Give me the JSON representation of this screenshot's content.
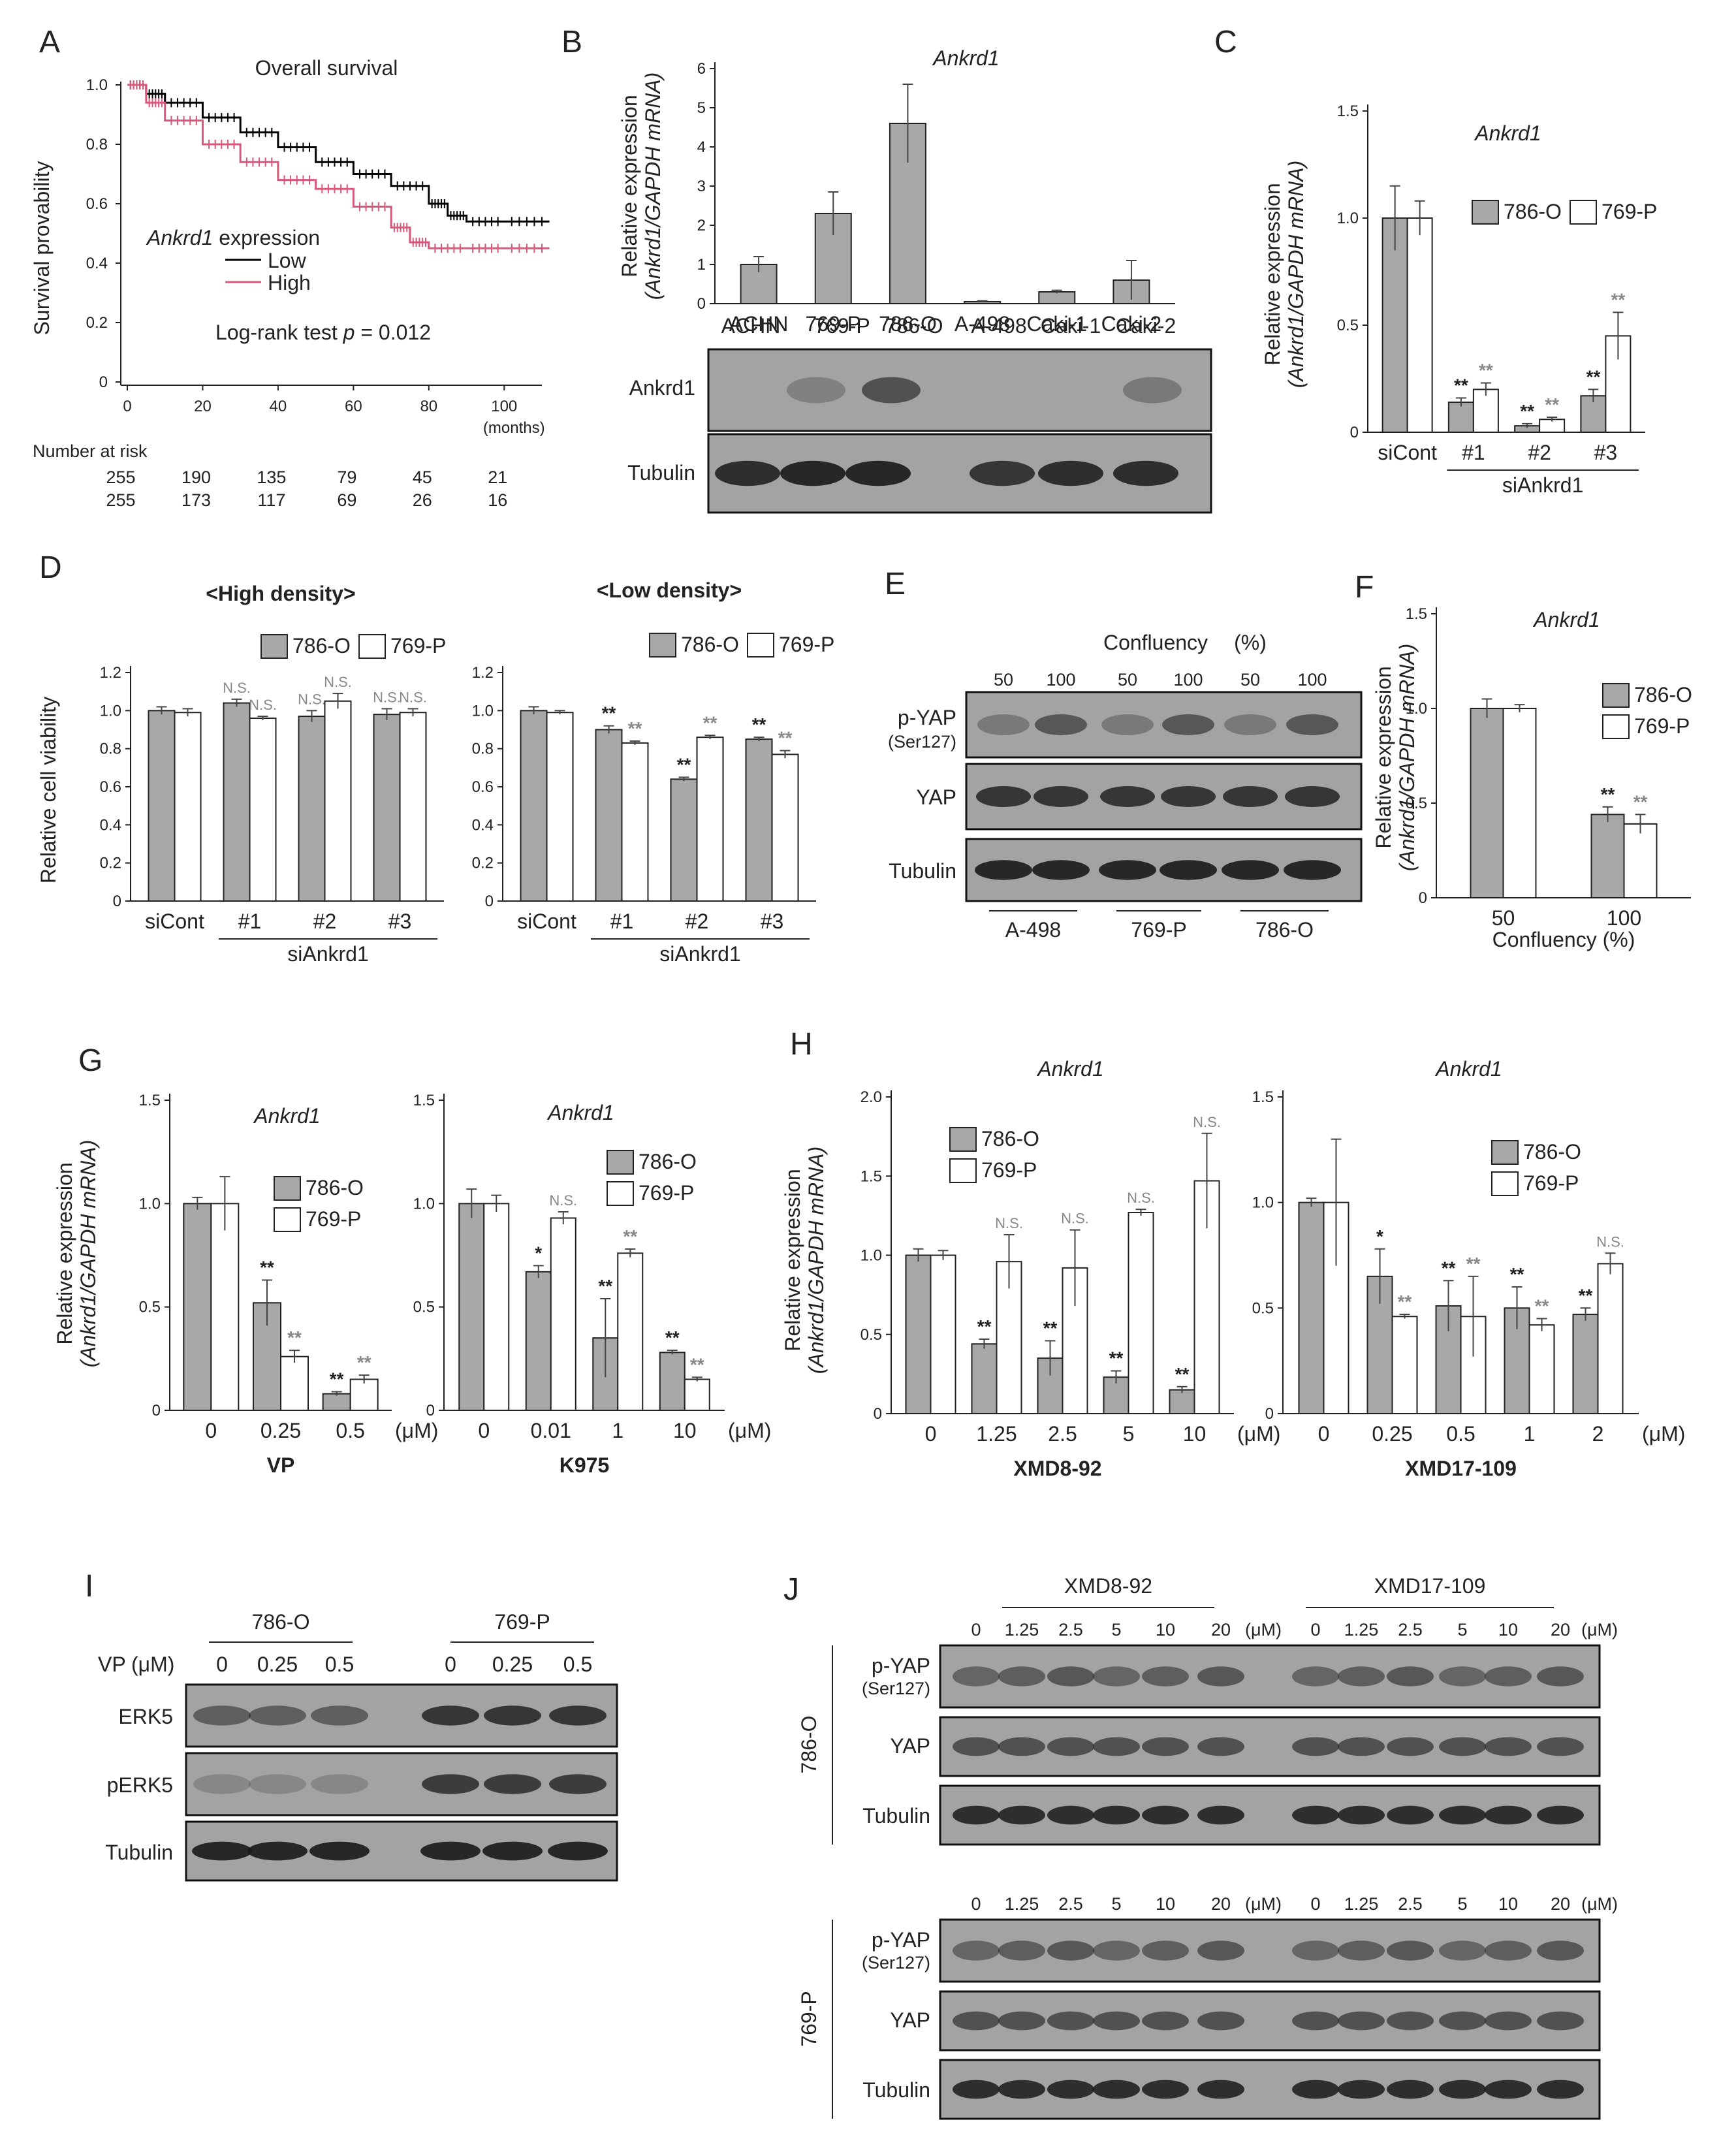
{
  "panels": [
    "A",
    "B",
    "C",
    "D",
    "E",
    "F",
    "G",
    "H",
    "I",
    "J"
  ],
  "chart_data": [
    {
      "panel": "A",
      "type": "line",
      "title": "Overall survival",
      "ylabel": "Survival provability",
      "xlabel": "(months)",
      "ylim": [
        0,
        1.0
      ],
      "xlim": [
        0,
        110
      ],
      "yticks": [
        "0",
        "0.2",
        "0.4",
        "0.6",
        "0.8",
        "1.0"
      ],
      "xticks": [
        "0",
        "20",
        "40",
        "60",
        "80",
        "100"
      ],
      "legend_title": "Ankrd1 expression",
      "legend_title_gene": "Ankrd1",
      "legend_title_rest": "expression",
      "series": [
        {
          "name": "Low",
          "color": "#000000",
          "x": [
            0,
            5,
            10,
            20,
            30,
            40,
            50,
            60,
            70,
            80,
            85,
            90,
            100,
            112
          ],
          "y": [
            1.0,
            0.97,
            0.94,
            0.89,
            0.84,
            0.79,
            0.74,
            0.7,
            0.66,
            0.6,
            0.56,
            0.54,
            0.54,
            0.54
          ]
        },
        {
          "name": "High",
          "color": "#d8587a",
          "x": [
            0,
            5,
            10,
            20,
            30,
            40,
            50,
            60,
            70,
            75,
            80,
            90,
            100,
            112
          ],
          "y": [
            1.0,
            0.94,
            0.88,
            0.8,
            0.74,
            0.68,
            0.65,
            0.59,
            0.52,
            0.47,
            0.45,
            0.45,
            0.45,
            0.45
          ]
        }
      ],
      "test_text": "Log-rank test",
      "p_text": "p",
      "p_value": "= 0.012",
      "risk_title": "Number at risk",
      "risk_rows": [
        [
          "255",
          "190",
          "135",
          "79",
          "45",
          "21"
        ],
        [
          "255",
          "173",
          "117",
          "69",
          "26",
          "16"
        ]
      ]
    },
    {
      "panel": "B",
      "type": "bar",
      "title": "Ankrd1",
      "ylabel_line1": "Relative expression",
      "ylabel_line2": "(Ankrd1/GAPDH mRNA)",
      "categories": [
        "ACHN",
        "769-P",
        "786-O",
        "A-498",
        "Caki-1",
        "Caki-2"
      ],
      "values": [
        1.0,
        2.3,
        4.6,
        0.05,
        0.3,
        0.6
      ],
      "errors": [
        0.2,
        0.55,
        1.0,
        0.02,
        0.04,
        0.5
      ],
      "ylim": [
        0,
        6
      ],
      "yticks": [
        "0",
        "1",
        "2",
        "3",
        "4",
        "5",
        "6"
      ],
      "blots": [
        "Ankrd1",
        "Tubulin"
      ]
    },
    {
      "panel": "C",
      "type": "bar",
      "title": "Ankrd1",
      "ylabel_line1": "Relative expression",
      "ylabel_line2": "(Ankrd1/GAPDH mRNA)",
      "categories": [
        "siCont",
        "#1",
        "#2",
        "#3"
      ],
      "group_label": "siAnkrd1",
      "ylim": [
        0,
        1.5
      ],
      "yticks": [
        "0",
        "0.5",
        "1.0",
        "1.5"
      ],
      "series": [
        {
          "name": "786-O",
          "values": [
            1.0,
            0.14,
            0.03,
            0.17
          ],
          "errors": [
            0.15,
            0.02,
            0.01,
            0.03
          ]
        },
        {
          "name": "769-P",
          "values": [
            1.0,
            0.2,
            0.06,
            0.45
          ],
          "errors": [
            0.08,
            0.03,
            0.01,
            0.11
          ]
        }
      ],
      "sig": [
        [
          "",
          "**",
          "**",
          "**"
        ],
        [
          "",
          "**",
          "**",
          "**"
        ]
      ]
    },
    {
      "panel": "D1",
      "type": "bar",
      "title": "<High density>",
      "ylabel": "Relative cell viability",
      "categories": [
        "siCont",
        "#1",
        "#2",
        "#3"
      ],
      "group_label": "siAnkrd1",
      "ylim": [
        0,
        1.2
      ],
      "yticks": [
        "0",
        "0.2",
        "0.4",
        "0.6",
        "0.8",
        "1.0",
        "1.2"
      ],
      "series": [
        {
          "name": "786-O",
          "values": [
            1.0,
            1.04,
            0.97,
            0.98
          ],
          "errors": [
            0.02,
            0.02,
            0.03,
            0.03
          ]
        },
        {
          "name": "769-P",
          "values": [
            0.99,
            0.96,
            1.05,
            0.99
          ],
          "errors": [
            0.02,
            0.01,
            0.04,
            0.02
          ]
        }
      ],
      "sig": [
        [
          "",
          "N.S.",
          "N.S.",
          "N.S."
        ],
        [
          "",
          "N.S.",
          "N.S.",
          "N.S."
        ]
      ]
    },
    {
      "panel": "D2",
      "type": "bar",
      "title": "<Low density>",
      "categories": [
        "siCont",
        "#1",
        "#2",
        "#3"
      ],
      "group_label": "siAnkrd1",
      "ylim": [
        0,
        1.2
      ],
      "yticks": [
        "0",
        "0.2",
        "0.4",
        "0.6",
        "0.8",
        "1.0",
        "1.2"
      ],
      "series": [
        {
          "name": "786-O",
          "values": [
            1.0,
            0.9,
            0.64,
            0.85
          ],
          "errors": [
            0.02,
            0.02,
            0.01,
            0.01
          ]
        },
        {
          "name": "769-P",
          "values": [
            0.99,
            0.83,
            0.86,
            0.77
          ],
          "errors": [
            0.01,
            0.01,
            0.01,
            0.02
          ]
        }
      ],
      "sig": [
        [
          "",
          "**",
          "**",
          "**"
        ],
        [
          "",
          "**",
          "**",
          "**"
        ]
      ]
    },
    {
      "panel": "F",
      "type": "bar",
      "title": "Ankrd1",
      "ylabel_line1": "Relative expression",
      "ylabel_line2": "(Ankrd1/GAPDH mRNA)",
      "categories": [
        "50",
        "100"
      ],
      "xlabel": "Confluency (%)",
      "ylim": [
        0,
        1.5
      ],
      "yticks": [
        "0",
        "0.5",
        "1.0",
        "1.5"
      ],
      "series": [
        {
          "name": "786-O",
          "values": [
            1.0,
            0.44
          ],
          "errors": [
            0.05,
            0.04
          ]
        },
        {
          "name": "769-P",
          "values": [
            1.0,
            0.39
          ],
          "errors": [
            0.02,
            0.05
          ]
        }
      ],
      "sig": [
        [
          "",
          "**"
        ],
        [
          "",
          "**"
        ]
      ]
    },
    {
      "panel": "G1",
      "type": "bar",
      "title": "Ankrd1",
      "xlabel": "VP",
      "ylabel_line1": "Relative expression",
      "ylabel_line2": "(Ankrd1/GAPDH mRNA)",
      "categories": [
        "0",
        "0.25",
        "0.5"
      ],
      "unit": "(μM)",
      "ylim": [
        0,
        1.5
      ],
      "yticks": [
        "0",
        "0.5",
        "1.0",
        "1.5"
      ],
      "series": [
        {
          "name": "786-O",
          "values": [
            1.0,
            0.52,
            0.08
          ],
          "errors": [
            0.03,
            0.11,
            0.01
          ]
        },
        {
          "name": "769-P",
          "values": [
            1.0,
            0.26,
            0.15
          ],
          "errors": [
            0.13,
            0.03,
            0.02
          ]
        }
      ],
      "sig": [
        [
          "",
          "**",
          "**"
        ],
        [
          "",
          "**",
          "**"
        ]
      ]
    },
    {
      "panel": "G2",
      "type": "bar",
      "title": "Ankrd1",
      "xlabel": "K975",
      "categories": [
        "0",
        "0.01",
        "1",
        "10"
      ],
      "unit": "(μM)",
      "ylim": [
        0,
        1.5
      ],
      "yticks": [
        "0",
        "0.5",
        "1.0",
        "1.5"
      ],
      "series": [
        {
          "name": "786-O",
          "values": [
            1.0,
            0.67,
            0.35,
            0.28
          ],
          "errors": [
            0.07,
            0.03,
            0.19,
            0.01
          ]
        },
        {
          "name": "769-P",
          "values": [
            1.0,
            0.93,
            0.76,
            0.15
          ],
          "errors": [
            0.04,
            0.03,
            0.02,
            0.01
          ]
        }
      ],
      "sig": [
        [
          "",
          "*",
          "**",
          "**"
        ],
        [
          "",
          "N.S.",
          "**",
          "**"
        ]
      ]
    },
    {
      "panel": "H1",
      "type": "bar",
      "title": "Ankrd1",
      "xlabel": "XMD8-92",
      "ylabel_line1": "Relative expression",
      "ylabel_line2": "(Ankrd1/GAPDH mRNA)",
      "categories": [
        "0",
        "1.25",
        "2.5",
        "5",
        "10"
      ],
      "unit": "(μM)",
      "ylim": [
        0,
        2.0
      ],
      "yticks": [
        "0",
        "0.5",
        "1.0",
        "1.5",
        "2.0"
      ],
      "series": [
        {
          "name": "786-O",
          "values": [
            1.0,
            0.44,
            0.35,
            0.23,
            0.15
          ],
          "errors": [
            0.04,
            0.03,
            0.11,
            0.04,
            0.02
          ]
        },
        {
          "name": "769-P",
          "values": [
            1.0,
            0.96,
            0.92,
            1.27,
            1.47
          ],
          "errors": [
            0.03,
            0.17,
            0.24,
            0.02,
            0.3
          ]
        }
      ],
      "sig": [
        [
          "",
          "**",
          "**",
          "**",
          "**"
        ],
        [
          "",
          "N.S.",
          "N.S.",
          "N.S.",
          "N.S."
        ]
      ]
    },
    {
      "panel": "H2",
      "type": "bar",
      "title": "Ankrd1",
      "xlabel": "XMD17-109",
      "categories": [
        "0",
        "0.25",
        "0.5",
        "1",
        "2"
      ],
      "unit": "(μM)",
      "ylim": [
        0,
        1.5
      ],
      "yticks": [
        "0",
        "0.5",
        "1.0",
        "1.5"
      ],
      "series": [
        {
          "name": "786-O",
          "values": [
            1.0,
            0.65,
            0.51,
            0.5,
            0.47
          ],
          "errors": [
            0.02,
            0.13,
            0.12,
            0.1,
            0.03
          ]
        },
        {
          "name": "769-P",
          "values": [
            1.0,
            0.46,
            0.46,
            0.42,
            0.71
          ],
          "errors": [
            0.3,
            0.01,
            0.19,
            0.03,
            0.05
          ]
        }
      ],
      "sig": [
        [
          "",
          "*",
          "**",
          "**",
          "**"
        ],
        [
          "",
          "**",
          "**",
          "**",
          "N.S."
        ]
      ]
    }
  ],
  "blot_E": {
    "header": "Confluency",
    "header_unit": "(%)",
    "lanes": [
      "50",
      "100",
      "50",
      "100",
      "50",
      "100"
    ],
    "rows": [
      "p-YAP",
      "(Ser127)",
      "YAP",
      "Tubulin"
    ],
    "groups": [
      "A-498",
      "769-P",
      "786-O"
    ]
  },
  "blot_I": {
    "groups": [
      "786-O",
      "769-P"
    ],
    "treat_label": "VP (μM)",
    "lanes": [
      "0",
      "0.25",
      "0.5",
      "0",
      "0.25",
      "0.5"
    ],
    "rows": [
      "ERK5",
      "pERK5",
      "Tubulin"
    ]
  },
  "blot_J": {
    "drugs": [
      "XMD8-92",
      "XMD17-109"
    ],
    "lanes": [
      "0",
      "1.25",
      "2.5",
      "5",
      "10",
      "20",
      "(μM)",
      "0",
      "1.25",
      "2.5",
      "5",
      "10",
      "20",
      "(μM)"
    ],
    "cells": [
      "786-O",
      "769-P"
    ],
    "rows": [
      "p-YAP",
      "(Ser127)",
      "YAP",
      "Tubulin"
    ]
  },
  "legend_names": [
    "786-O",
    "769-P"
  ],
  "colors": {
    "grey_bar": "#a8a8a8",
    "white_bar": "#ffffff",
    "high": "#d8587a",
    "low": "#000000"
  }
}
